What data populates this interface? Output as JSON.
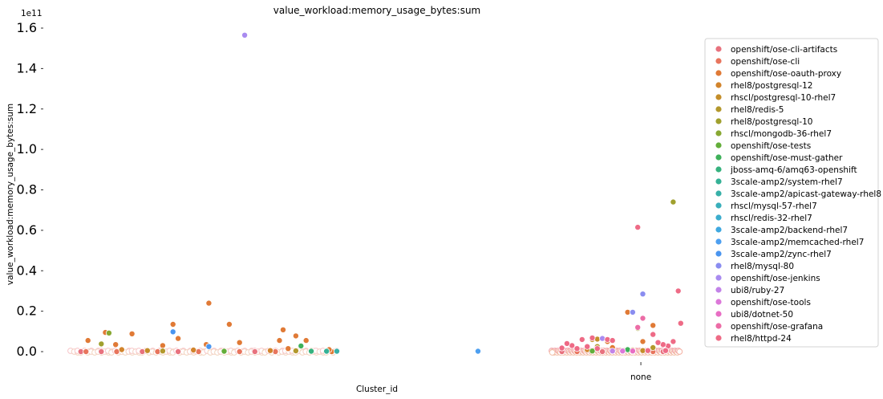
{
  "chart_data": {
    "type": "scatter",
    "title": "value_workload:memory_usage_bytes:sum",
    "xlabel": "Cluster_id",
    "ylabel": "value_workload:memory_usage_bytes:sum",
    "y_offset_label": "1e11",
    "y_scale": 100000000000.0,
    "ylim": [
      -5000000000.0,
      162000000000.0
    ],
    "y_ticks": [
      0,
      20000000000.0,
      40000000000.0,
      60000000000.0,
      80000000000.0,
      100000000000.0,
      120000000000.0,
      140000000000.0,
      160000000000.0
    ],
    "y_tick_labels": [
      "0.0",
      "0.2",
      "0.4",
      "0.6",
      "0.8",
      "1.0",
      "1.2",
      "1.4",
      "1.6"
    ],
    "x_tick_labels": [
      "none"
    ],
    "legend_position": "right",
    "grid": false,
    "categories_note": "clusters are ordered along x; x index 0-1000",
    "xlim": [
      0,
      1000
    ],
    "x_tick_positions": [
      910
    ],
    "series": [
      {
        "name": "openshift/ose-cli-artifacts",
        "color": "#e8727e",
        "points": [
          [
            20,
            0.0
          ],
          [
            60,
            0.0
          ],
          [
            140,
            0.0
          ],
          [
            210,
            0.0
          ],
          [
            300,
            0.0
          ],
          [
            360,
            0.0
          ],
          [
            520,
            0.0
          ],
          [
            610,
            0.0
          ],
          [
            700,
            0.0
          ],
          [
            780,
            0.0
          ],
          [
            840,
            0.0
          ],
          [
            900,
            0.0
          ]
        ]
      },
      {
        "name": "openshift/ose-cli",
        "color": "#e8755d",
        "points": [
          [
            30,
            0.0
          ],
          [
            90,
            0.0
          ],
          [
            170,
            0.0
          ],
          [
            250,
            0.0
          ],
          [
            330,
            0.0
          ],
          [
            400,
            0.0
          ],
          [
            560,
            0.0
          ],
          [
            650,
            0.0
          ],
          [
            730,
            0.0
          ],
          [
            820,
            0.0
          ],
          [
            880,
            0.0
          ]
        ]
      },
      {
        "name": "openshift/ose-oauth-proxy",
        "color": "#e07a36",
        "points": [
          [
            34,
            5500000000.0
          ],
          [
            68,
            9500000000.0
          ],
          [
            120,
            8800000000.0
          ],
          [
            88,
            3500000000.0
          ],
          [
            210,
            6500000000.0
          ],
          [
            270,
            24000000000.0
          ],
          [
            265,
            3500000000.0
          ],
          [
            310,
            13500000000.0
          ],
          [
            330,
            4500000000.0
          ],
          [
            415,
            10800000000.0
          ],
          [
            440,
            7800000000.0
          ],
          [
            408,
            5500000000.0
          ],
          [
            460,
            5500000000.0
          ],
          [
            425,
            1500000000.0
          ],
          [
            510,
            0.0
          ],
          [
            505,
            1000000000.0
          ],
          [
            830,
            19500000000.0
          ],
          [
            880,
            13000000000.0
          ],
          [
            860,
            5000000000.0
          ],
          [
            790,
            5000000000.0
          ],
          [
            800,
            2000000000.0
          ],
          [
            870,
            500000000.0
          ],
          [
            200,
            13500000000.0
          ],
          [
            180,
            3000000000.0
          ]
        ]
      },
      {
        "name": "rhel8/postgresql-12",
        "color": "#d2842c",
        "points": [
          [
            100,
            1000000000.0
          ],
          [
            240,
            800000000.0
          ],
          [
            390,
            500000000.0
          ],
          [
            750,
            1000000000.0
          ],
          [
            840,
            800000000.0
          ]
        ]
      },
      {
        "name": "rhscl/postgresql-10-rhel7",
        "color": "#c48e2a",
        "points": [
          [
            150,
            500000000.0
          ],
          [
            470,
            600000000.0
          ],
          [
            760,
            6000000000.0
          ],
          [
            770,
            6200000000.0
          ],
          [
            860,
            500000000.0
          ]
        ]
      },
      {
        "name": "rhel8/redis-5",
        "color": "#b3982c",
        "points": [
          [
            180,
            300000000.0
          ],
          [
            440,
            400000000.0
          ],
          [
            770,
            2500000000.0
          ],
          [
            880,
            2000000000.0
          ]
        ]
      },
      {
        "name": "rhel8/postgresql-10",
        "color": "#a0a02e",
        "points": [
          [
            60,
            3800000000.0
          ],
          [
            850,
            11500000000.0
          ],
          [
            920,
            74000000000.0
          ]
        ]
      },
      {
        "name": "rhscl/mongodb-36-rhel7",
        "color": "#88a832",
        "points": [
          [
            75,
            9200000000.0
          ],
          [
            630,
            0.0
          ]
        ]
      },
      {
        "name": "openshift/ose-tests",
        "color": "#63ae3a",
        "points": [
          [
            300,
            200000000.0
          ],
          [
            760,
            300000000.0
          ]
        ]
      },
      {
        "name": "openshift/ose-must-gather",
        "color": "#3fb15a",
        "points": [
          [
            450,
            2800000000.0
          ],
          [
            830,
            1000000000.0
          ]
        ]
      },
      {
        "name": "jboss-amq-6/amq63-openshift",
        "color": "#36b27e",
        "points": [
          [
            470,
            200000000.0
          ]
        ]
      },
      {
        "name": "3scale-amp2/system-rhel7",
        "color": "#35b196",
        "points": [
          [
            500,
            200000000.0
          ]
        ]
      },
      {
        "name": "3scale-amp2/apicast-gateway-rhel8",
        "color": "#37b0a8",
        "points": [
          [
            520,
            200000000.0
          ]
        ]
      },
      {
        "name": "rhscl/mysql-57-rhel7",
        "color": "#39afbb",
        "points": [
          [
            540,
            200000000.0
          ]
        ]
      },
      {
        "name": "rhscl/redis-32-rhel7",
        "color": "#3cadcd",
        "points": [
          [
            560,
            200000000.0
          ]
        ]
      },
      {
        "name": "3scale-amp2/backend-rhel7",
        "color": "#3fa8e0",
        "points": [
          [
            580,
            200000000.0
          ]
        ]
      },
      {
        "name": "3scale-amp2/memcached-rhel7",
        "color": "#4d9ff0",
        "points": [
          [
            600,
            200000000.0
          ]
        ]
      },
      {
        "name": "3scale-amp2/zync-rhel7",
        "color": "#4a95ef",
        "points": [
          [
            200,
            9800000000.0
          ],
          [
            270,
            2500000000.0
          ]
        ]
      },
      {
        "name": "rhel8/mysql-80",
        "color": "#8a8df0",
        "points": [
          [
            860,
            28500000000.0
          ],
          [
            840,
            19500000000.0
          ]
        ]
      },
      {
        "name": "openshift/ose-jenkins",
        "color": "#a98bf0",
        "points": [
          [
            340,
            156500000000.0
          ],
          [
            780,
            6500000000.0
          ]
        ]
      },
      {
        "name": "ubi8/ruby-27",
        "color": "#c283e8",
        "points": [
          [
            800,
            300000000.0
          ]
        ]
      },
      {
        "name": "openshift/ose-tools",
        "color": "#dc78d9",
        "points": [
          [
            820,
            300000000.0
          ]
        ]
      },
      {
        "name": "ubi8/dotnet-50",
        "color": "#e86ec4",
        "points": [
          [
            840,
            300000000.0
          ]
        ]
      },
      {
        "name": "openshift/ose-grafana",
        "color": "#ec6ca6",
        "points": [
          [
            860,
            16500000000.0
          ],
          [
            850,
            12000000000.0
          ]
        ]
      },
      {
        "name": "rhel8/httpd-24",
        "color": "#ee6b86",
        "points": [
          [
            850,
            61500000000.0
          ],
          [
            930,
            30000000000.0
          ],
          [
            935,
            14000000000.0
          ],
          [
            920,
            5000000000.0
          ],
          [
            910,
            2800000000.0
          ],
          [
            900,
            3500000000.0
          ],
          [
            880,
            8500000000.0
          ],
          [
            720,
            3000000000.0
          ],
          [
            730,
            1500000000.0
          ],
          [
            740,
            6000000000.0
          ],
          [
            760,
            6800000000.0
          ],
          [
            790,
            6000000000.0
          ],
          [
            800,
            5500000000.0
          ],
          [
            700,
            1800000000.0
          ],
          [
            710,
            4000000000.0
          ],
          [
            750,
            2500000000.0
          ],
          [
            770,
            1500000000.0
          ],
          [
            890,
            4500000000.0
          ],
          [
            870,
            500000000.0
          ],
          [
            905,
            500000000.0
          ]
        ]
      }
    ]
  }
}
